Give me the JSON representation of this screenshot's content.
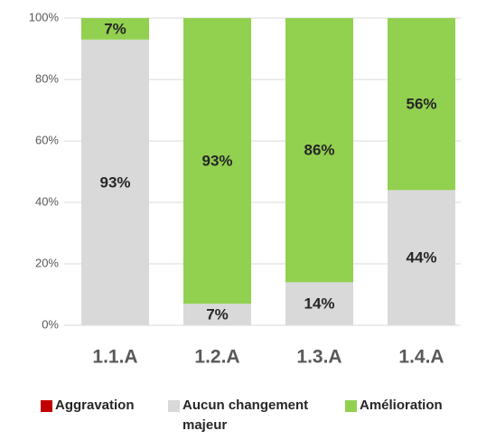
{
  "chart_data": {
    "type": "stacked_bar",
    "categories": [
      "1.1.A",
      "1.2.A",
      "1.3.A",
      "1.4.A"
    ],
    "series": [
      {
        "name": "Aggravation",
        "color": "#c00000",
        "values": [
          0,
          0,
          0,
          0
        ]
      },
      {
        "name": "Aucun changement majeur",
        "color": "#d9d9d9",
        "values": [
          93,
          7,
          14,
          44
        ],
        "value_labels": [
          "93%",
          "7%",
          "14%",
          "44%"
        ]
      },
      {
        "name": "Amélioration",
        "color": "#92d050",
        "values": [
          7,
          93,
          86,
          56
        ],
        "value_labels": [
          "7%",
          "93%",
          "86%",
          "56%"
        ]
      }
    ],
    "ylim": [
      0,
      100
    ],
    "yticks": [
      {
        "value": 0,
        "label": "0%"
      },
      {
        "value": 20,
        "label": "20%"
      },
      {
        "value": 40,
        "label": "40%"
      },
      {
        "value": 60,
        "label": "60%"
      },
      {
        "value": 80,
        "label": "80%"
      },
      {
        "value": 100,
        "label": "100%"
      }
    ],
    "grid": true
  }
}
